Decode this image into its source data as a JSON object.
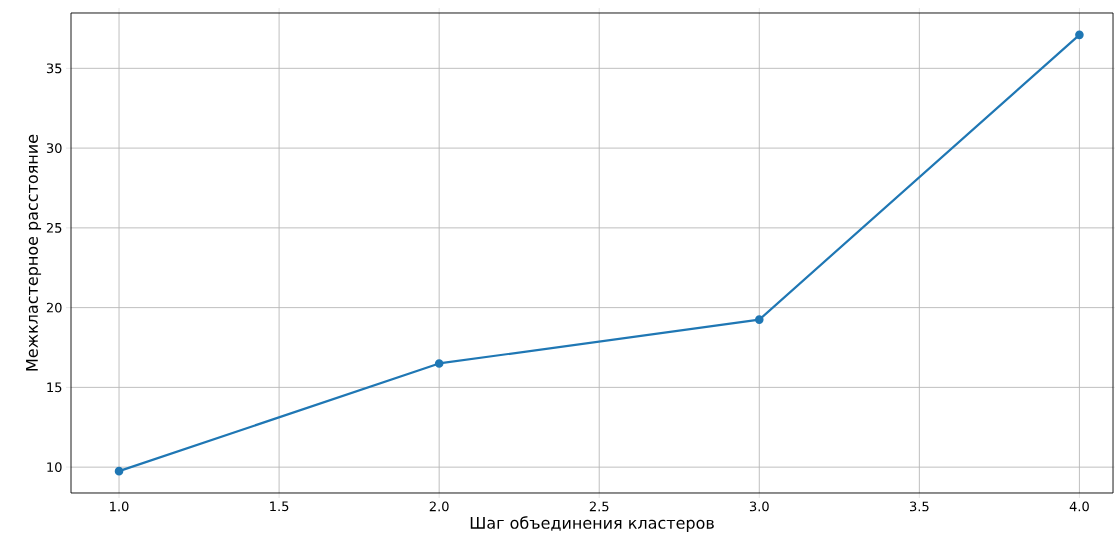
{
  "chart_data": {
    "type": "line",
    "xlabel": "Шаг объединения кластеров",
    "ylabel": "Межкластерное расстояние",
    "x": [
      1,
      2,
      3,
      4
    ],
    "values": [
      9.75,
      16.5,
      19.25,
      37.1
    ],
    "color": "#1f77b4",
    "marker": "circle",
    "grid": true,
    "xlim": [
      0.85,
      4.105
    ],
    "ylim": [
      8.38,
      38.47
    ],
    "xticks": [
      {
        "value": 1,
        "label": "1.0"
      },
      {
        "value": 1.5,
        "label": "1.5"
      },
      {
        "value": 2,
        "label": "2.0"
      },
      {
        "value": 2.5,
        "label": "2.5"
      },
      {
        "value": 3,
        "label": "3.0"
      },
      {
        "value": 3.5,
        "label": "3.5"
      },
      {
        "value": 4,
        "label": "4.0"
      }
    ],
    "yticks": [
      10,
      15,
      20,
      25,
      30,
      35
    ]
  }
}
